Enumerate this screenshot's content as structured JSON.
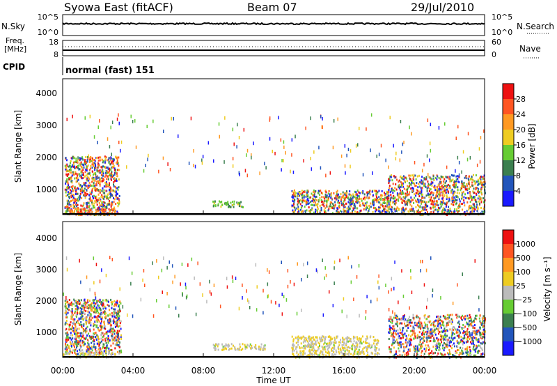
{
  "header": {
    "station": "Syowa East (fitACF)",
    "beam": "Beam 07",
    "date": "29/Jul/2010"
  },
  "noise_panel": {
    "left_label": "N.Sky",
    "right_label": "N.Search",
    "ticks_left": [
      "10^5",
      "10^0"
    ],
    "ticks_right": [
      "10^5",
      "10^0"
    ]
  },
  "freq_panel": {
    "left_label_top": "Freq.",
    "left_label_bottom": "[MHz]",
    "ticks_left": [
      "18",
      "8"
    ],
    "ticks_right": [
      "60",
      "0"
    ],
    "right_label": "Nave"
  },
  "cpid": {
    "label": "CPID",
    "value": "normal (fast) 151"
  },
  "power_panel": {
    "ylabel": "Slant Range [km]",
    "yticks": [
      "4000",
      "3000",
      "2000",
      "1000"
    ],
    "colorbar_label": "Power [dB]",
    "colorbar_ticks": [
      "28",
      "24",
      "20",
      "16",
      "12",
      "8",
      "4"
    ],
    "colors": [
      "#1a1aff",
      "#2255bb",
      "#3b7f4f",
      "#66cc33",
      "#eecc22",
      "#ff9922",
      "#ff5522",
      "#ee1111"
    ]
  },
  "velocity_panel": {
    "ylabel": "Slant Range [km]",
    "yticks": [
      "4000",
      "3000",
      "2000",
      "1000"
    ],
    "colorbar_label": "Velocity [m s⁻¹]",
    "colorbar_ticks": [
      "1000",
      "500",
      "100",
      "25",
      "−25",
      "−100",
      "−500",
      "−1000"
    ],
    "colors": [
      "#1a1aff",
      "#2255bb",
      "#3b7f4f",
      "#66cc33",
      "#bbbbbb",
      "#eecc22",
      "#ff9922",
      "#ff5522",
      "#ee1111"
    ]
  },
  "xaxis": {
    "label": "Time UT",
    "ticks": [
      "00:00",
      "04:00",
      "08:00",
      "12:00",
      "16:00",
      "20:00",
      "00:00"
    ]
  },
  "chart_data": [
    {
      "type": "heatmap",
      "title": "Power",
      "xlabel": "Time UT",
      "ylabel": "Slant Range [km]",
      "xlim_hours": [
        0,
        24
      ],
      "ylim_km": [
        180,
        4600
      ],
      "colorbar": "Power [dB]",
      "clim": [
        0,
        30
      ],
      "regions": [
        {
          "t0": 0.1,
          "t1": 3.2,
          "r0": 200,
          "r1": 2100,
          "level": "mixed"
        },
        {
          "t0": 0.3,
          "t1": 3.0,
          "r0": 200,
          "r1": 400,
          "level": 24
        },
        {
          "t0": 8.5,
          "t1": 10.3,
          "r0": 450,
          "r1": 650,
          "level": 12
        },
        {
          "t0": 13.0,
          "t1": 18.5,
          "r0": 250,
          "r1": 1000,
          "level": "mixed"
        },
        {
          "t0": 18.5,
          "t1": 24.0,
          "r0": 200,
          "r1": 1500,
          "level": "mixed"
        }
      ]
    },
    {
      "type": "heatmap",
      "title": "Velocity",
      "xlabel": "Time UT",
      "ylabel": "Slant Range [km]",
      "xlim_hours": [
        0,
        24
      ],
      "ylim_km": [
        180,
        4600
      ],
      "colorbar": "Velocity [m s⁻¹]",
      "clim": [
        -1000,
        1000
      ],
      "regions": [
        {
          "t0": 0.1,
          "t1": 3.3,
          "r0": 300,
          "r1": 2100,
          "level": "mixed"
        },
        {
          "t0": 0.0,
          "t1": 3.0,
          "r0": 200,
          "r1": 450,
          "level": 100
        },
        {
          "t0": 8.5,
          "t1": 11.5,
          "r0": 450,
          "r1": 650,
          "level": 100
        },
        {
          "t0": 13.0,
          "t1": 18.0,
          "r0": 200,
          "r1": 900,
          "level": 100
        },
        {
          "t0": 18.5,
          "t1": 24.0,
          "r0": 200,
          "r1": 1600,
          "level": "mixed"
        }
      ]
    }
  ]
}
